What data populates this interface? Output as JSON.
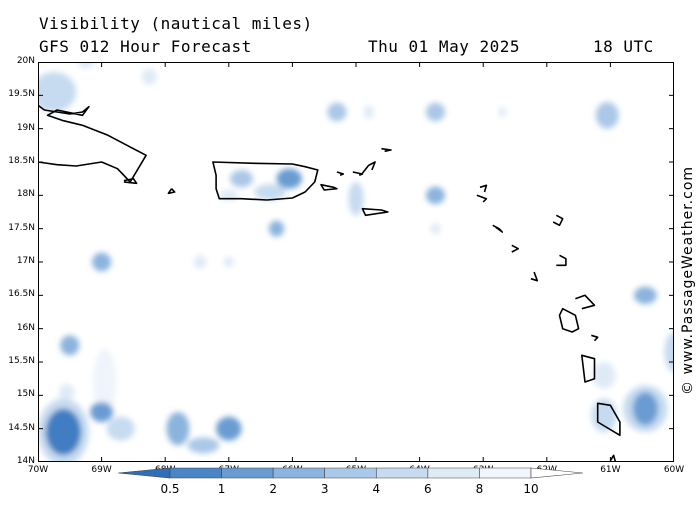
{
  "header": {
    "title": "Visibility (nautical miles)",
    "subtitle": "GFS 012 Hour Forecast",
    "date": "Thu 01 May 2025",
    "time": "18 UTC"
  },
  "copyright": "© www.PassageWeather.com",
  "map": {
    "lon_range": [
      -70,
      -60
    ],
    "lat_range": [
      14,
      20
    ],
    "lat_ticks": [
      {
        "v": 20,
        "label": "20N"
      },
      {
        "v": 19.5,
        "label": "19.5N"
      },
      {
        "v": 19,
        "label": "19N"
      },
      {
        "v": 18.5,
        "label": "18.5N"
      },
      {
        "v": 18,
        "label": "18N"
      },
      {
        "v": 17.5,
        "label": "17.5N"
      },
      {
        "v": 17,
        "label": "17N"
      },
      {
        "v": 16.5,
        "label": "16.5N"
      },
      {
        "v": 16,
        "label": "16N"
      },
      {
        "v": 15.5,
        "label": "15.5N"
      },
      {
        "v": 15,
        "label": "15N"
      },
      {
        "v": 14.5,
        "label": "14.5N"
      },
      {
        "v": 14,
        "label": "14N"
      }
    ],
    "lon_ticks": [
      {
        "v": -70,
        "label": "70W"
      },
      {
        "v": -69,
        "label": "69W"
      },
      {
        "v": -68,
        "label": "68W"
      },
      {
        "v": -67,
        "label": "67W"
      },
      {
        "v": -66,
        "label": "66W"
      },
      {
        "v": -65,
        "label": "65W"
      },
      {
        "v": -64,
        "label": "64W"
      },
      {
        "v": -63,
        "label": "63W"
      },
      {
        "v": -62,
        "label": "62W"
      },
      {
        "v": -61,
        "label": "61W"
      },
      {
        "v": -60,
        "label": "60W"
      }
    ],
    "reduced_visibility_patches": [
      {
        "lon": -69.75,
        "lat": 19.55,
        "rx": 0.35,
        "ry": 0.3,
        "vis": 6
      },
      {
        "lon": -68.25,
        "lat": 19.78,
        "rx": 0.12,
        "ry": 0.12,
        "vis": 8
      },
      {
        "lon": -69.25,
        "lat": 19.98,
        "rx": 0.12,
        "ry": 0.08,
        "vis": 8
      },
      {
        "lon": -65.3,
        "lat": 19.25,
        "rx": 0.15,
        "ry": 0.14,
        "vis": 4
      },
      {
        "lon": -64.8,
        "lat": 19.25,
        "rx": 0.08,
        "ry": 0.1,
        "vis": 8
      },
      {
        "lon": -63.75,
        "lat": 19.25,
        "rx": 0.15,
        "ry": 0.14,
        "vis": 4
      },
      {
        "lon": -62.7,
        "lat": 19.25,
        "rx": 0.06,
        "ry": 0.08,
        "vis": 8
      },
      {
        "lon": -61.05,
        "lat": 19.2,
        "rx": 0.18,
        "ry": 0.2,
        "vis": 4
      },
      {
        "lon": -66.05,
        "lat": 18.25,
        "rx": 0.2,
        "ry": 0.15,
        "vis": 2
      },
      {
        "lon": -66.8,
        "lat": 18.25,
        "rx": 0.18,
        "ry": 0.13,
        "vis": 4
      },
      {
        "lon": -66.35,
        "lat": 18.05,
        "rx": 0.25,
        "ry": 0.12,
        "vis": 6
      },
      {
        "lon": -67.0,
        "lat": 18.0,
        "rx": 0.15,
        "ry": 0.08,
        "vis": 8
      },
      {
        "lon": -65.0,
        "lat": 17.95,
        "rx": 0.12,
        "ry": 0.25,
        "vis": 6
      },
      {
        "lon": -63.75,
        "lat": 18.0,
        "rx": 0.15,
        "ry": 0.13,
        "vis": 3
      },
      {
        "lon": -66.25,
        "lat": 17.5,
        "rx": 0.12,
        "ry": 0.12,
        "vis": 3
      },
      {
        "lon": -63.75,
        "lat": 17.5,
        "rx": 0.08,
        "ry": 0.08,
        "vis": 8
      },
      {
        "lon": -69.0,
        "lat": 17.0,
        "rx": 0.15,
        "ry": 0.14,
        "vis": 3
      },
      {
        "lon": -67.45,
        "lat": 17.0,
        "rx": 0.1,
        "ry": 0.1,
        "vis": 8
      },
      {
        "lon": -67.0,
        "lat": 17.0,
        "rx": 0.08,
        "ry": 0.08,
        "vis": 8
      },
      {
        "lon": -60.45,
        "lat": 16.5,
        "rx": 0.18,
        "ry": 0.13,
        "vis": 3
      },
      {
        "lon": -69.5,
        "lat": 15.75,
        "rx": 0.15,
        "ry": 0.15,
        "vis": 3
      },
      {
        "lon": -60.0,
        "lat": 15.65,
        "rx": 0.15,
        "ry": 0.3,
        "vis": 6
      },
      {
        "lon": -68.95,
        "lat": 15.2,
        "rx": 0.18,
        "ry": 0.5,
        "vis": 10
      },
      {
        "lon": -69.55,
        "lat": 15.05,
        "rx": 0.12,
        "ry": 0.12,
        "vis": 8
      },
      {
        "lon": -69.0,
        "lat": 14.75,
        "rx": 0.18,
        "ry": 0.15,
        "vis": 2
      },
      {
        "lon": -68.7,
        "lat": 14.5,
        "rx": 0.22,
        "ry": 0.18,
        "vis": 6
      },
      {
        "lon": -69.6,
        "lat": 14.45,
        "rx": 0.28,
        "ry": 0.35,
        "vis": 1
      },
      {
        "lon": -69.6,
        "lat": 14.45,
        "rx": 0.4,
        "ry": 0.5,
        "vis": 6
      },
      {
        "lon": -67.8,
        "lat": 14.5,
        "rx": 0.18,
        "ry": 0.25,
        "vis": 3
      },
      {
        "lon": -67.0,
        "lat": 14.5,
        "rx": 0.2,
        "ry": 0.18,
        "vis": 2
      },
      {
        "lon": -67.4,
        "lat": 14.25,
        "rx": 0.25,
        "ry": 0.12,
        "vis": 4
      },
      {
        "lon": -61.1,
        "lat": 15.3,
        "rx": 0.18,
        "ry": 0.2,
        "vis": 8
      },
      {
        "lon": -61.1,
        "lat": 14.7,
        "rx": 0.2,
        "ry": 0.25,
        "vis": 6
      },
      {
        "lon": -60.45,
        "lat": 14.8,
        "rx": 0.2,
        "ry": 0.25,
        "vis": 2
      },
      {
        "lon": -60.45,
        "lat": 14.8,
        "rx": 0.35,
        "ry": 0.35,
        "vis": 6
      }
    ],
    "land": [
      [
        [
          -70,
          18.5
        ],
        [
          -69.7,
          18.46
        ],
        [
          -69.4,
          18.44
        ],
        [
          -69.0,
          18.5
        ],
        [
          -68.75,
          18.4
        ],
        [
          -68.55,
          18.2
        ],
        [
          -68.3,
          18.6
        ],
        [
          -68.6,
          18.75
        ],
        [
          -68.9,
          18.9
        ],
        [
          -69.3,
          19.05
        ],
        [
          -69.6,
          19.12
        ],
        [
          -69.85,
          19.2
        ],
        [
          -69.7,
          19.28
        ],
        [
          -69.3,
          19.2
        ],
        [
          -69.2,
          19.33
        ],
        [
          -69.3,
          19.25
        ],
        [
          -69.5,
          19.22
        ],
        [
          -69.9,
          19.28
        ],
        [
          -70,
          19.35
        ]
      ],
      [
        [
          -68.65,
          18.2
        ],
        [
          -68.45,
          18.18
        ],
        [
          -68.5,
          18.25
        ],
        [
          -68.65,
          18.22
        ]
      ],
      [
        [
          -67.9,
          18.1
        ],
        [
          -67.85,
          18.05
        ],
        [
          -67.95,
          18.03
        ],
        [
          -67.9,
          18.1
        ]
      ],
      [
        [
          -67.25,
          18.5
        ],
        [
          -66.6,
          18.48
        ],
        [
          -66.0,
          18.47
        ],
        [
          -65.8,
          18.43
        ],
        [
          -65.6,
          18.38
        ],
        [
          -65.65,
          18.2
        ],
        [
          -65.8,
          18.05
        ],
        [
          -66.0,
          17.96
        ],
        [
          -66.4,
          17.93
        ],
        [
          -66.8,
          17.95
        ],
        [
          -67.15,
          17.95
        ],
        [
          -67.2,
          18.1
        ],
        [
          -67.2,
          18.3
        ],
        [
          -67.25,
          18.5
        ]
      ],
      [
        [
          -65.55,
          18.16
        ],
        [
          -65.35,
          18.12
        ],
        [
          -65.3,
          18.1
        ],
        [
          -65.5,
          18.08
        ],
        [
          -65.55,
          18.16
        ]
      ],
      [
        [
          -65.3,
          18.35
        ],
        [
          -65.2,
          18.32
        ],
        [
          -65.25,
          18.3
        ]
      ],
      [
        [
          -65.05,
          18.35
        ],
        [
          -64.9,
          18.32
        ],
        [
          -64.95,
          18.3
        ]
      ],
      [
        [
          -64.9,
          18.33
        ],
        [
          -64.8,
          18.45
        ],
        [
          -64.7,
          18.5
        ],
        [
          -64.75,
          18.38
        ]
      ],
      [
        [
          -64.6,
          18.7
        ],
        [
          -64.45,
          18.68
        ],
        [
          -64.55,
          18.66
        ]
      ],
      [
        [
          -64.9,
          17.8
        ],
        [
          -64.6,
          17.78
        ],
        [
          -64.5,
          17.75
        ],
        [
          -64.85,
          17.7
        ],
        [
          -64.9,
          17.8
        ]
      ],
      [
        [
          -63.05,
          18.12
        ],
        [
          -62.95,
          18.15
        ],
        [
          -62.98,
          18.05
        ]
      ],
      [
        [
          -63.1,
          18.0
        ],
        [
          -62.95,
          17.95
        ],
        [
          -63.0,
          17.9
        ]
      ],
      [
        [
          -62.85,
          17.55
        ],
        [
          -62.75,
          17.5
        ],
        [
          -62.7,
          17.45
        ],
        [
          -62.8,
          17.52
        ]
      ],
      [
        [
          -62.55,
          17.25
        ],
        [
          -62.45,
          17.2
        ],
        [
          -62.55,
          17.15
        ]
      ],
      [
        [
          -61.85,
          17.7
        ],
        [
          -61.75,
          17.65
        ],
        [
          -61.8,
          17.55
        ],
        [
          -61.9,
          17.6
        ]
      ],
      [
        [
          -62.2,
          16.85
        ],
        [
          -62.15,
          16.72
        ],
        [
          -62.25,
          16.75
        ]
      ],
      [
        [
          -61.8,
          17.1
        ],
        [
          -61.7,
          17.05
        ],
        [
          -61.7,
          16.95
        ],
        [
          -61.85,
          16.95
        ]
      ],
      [
        [
          -61.75,
          16.3
        ],
        [
          -61.55,
          16.2
        ],
        [
          -61.5,
          16.0
        ],
        [
          -61.6,
          15.95
        ],
        [
          -61.75,
          16.0
        ],
        [
          -61.8,
          16.2
        ]
      ],
      [
        [
          -61.55,
          16.45
        ],
        [
          -61.4,
          16.5
        ],
        [
          -61.25,
          16.35
        ],
        [
          -61.45,
          16.3
        ]
      ],
      [
        [
          -61.3,
          15.9
        ],
        [
          -61.2,
          15.87
        ],
        [
          -61.25,
          15.82
        ]
      ],
      [
        [
          -61.45,
          15.6
        ],
        [
          -61.25,
          15.55
        ],
        [
          -61.25,
          15.25
        ],
        [
          -61.4,
          15.2
        ],
        [
          -61.45,
          15.6
        ]
      ],
      [
        [
          -61.2,
          14.88
        ],
        [
          -61.0,
          14.85
        ],
        [
          -60.85,
          14.6
        ],
        [
          -60.85,
          14.4
        ],
        [
          -61.2,
          14.6
        ]
      ],
      [
        [
          -61.0,
          14.02
        ],
        [
          -60.95,
          14.1
        ],
        [
          -60.92,
          14.0
        ]
      ]
    ]
  },
  "legend": {
    "labels": [
      "0.5",
      "1",
      "2",
      "3",
      "4",
      "6",
      "8",
      "10"
    ],
    "colors": [
      "#2f6fba",
      "#4a85c6",
      "#6a9cd2",
      "#8bb3dd",
      "#aac8e7",
      "#c6dbf0",
      "#dfeaf7",
      "#f1f6fc",
      "#ffffff"
    ]
  }
}
